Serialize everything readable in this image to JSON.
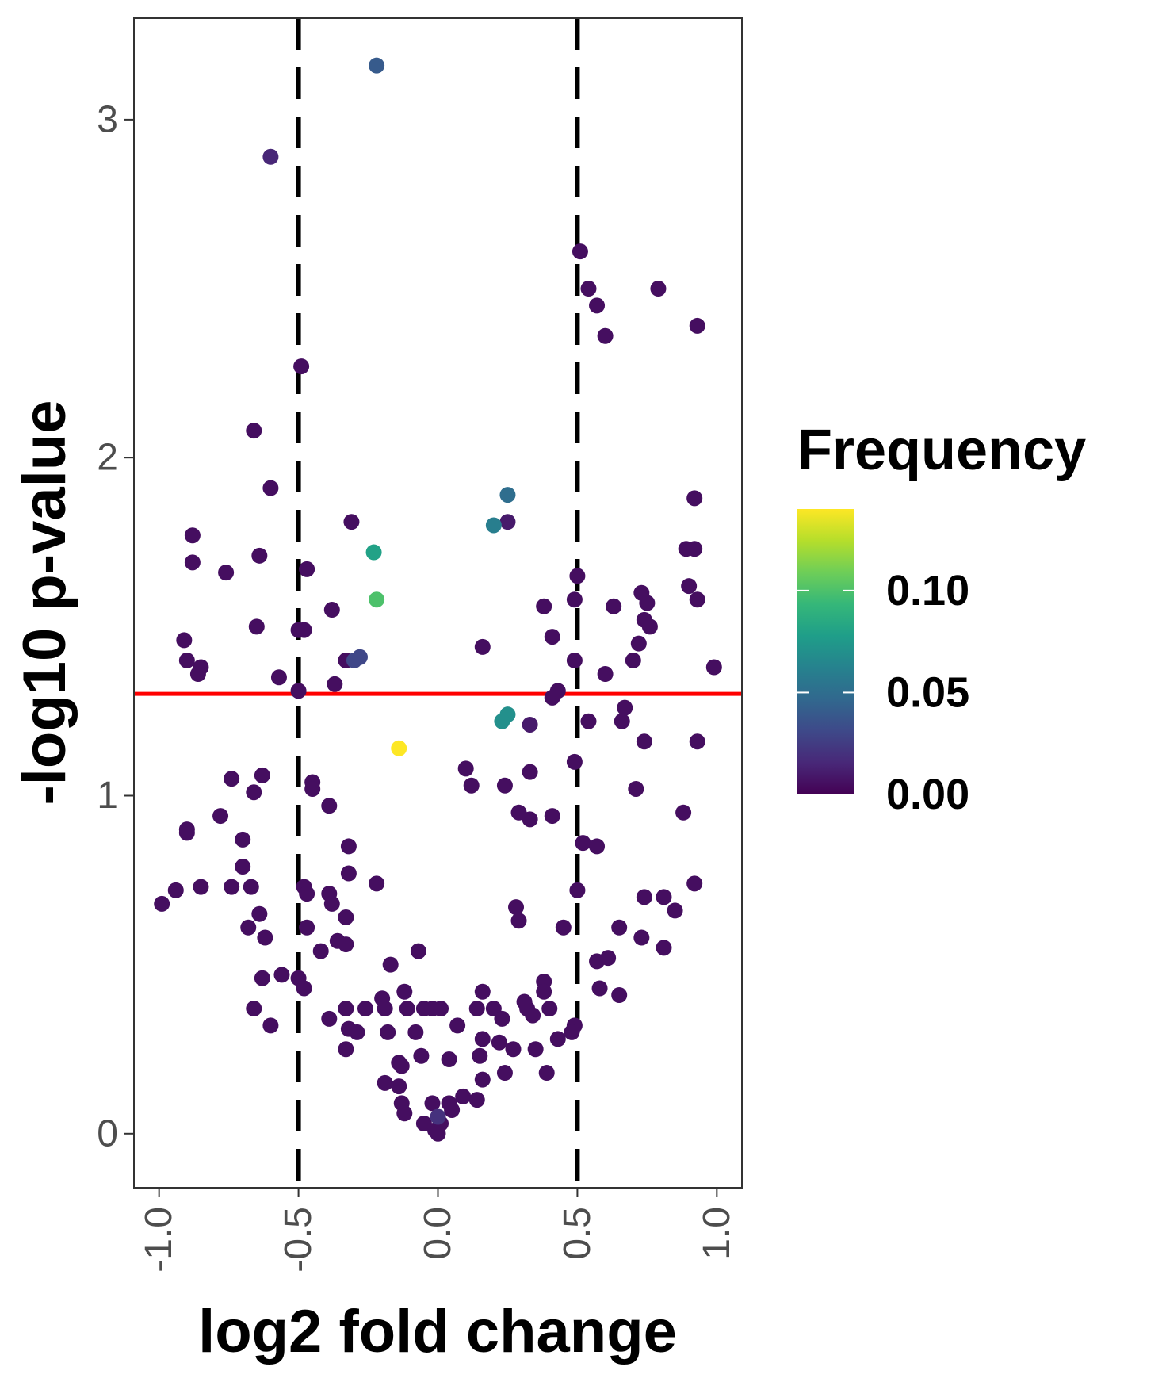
{
  "chart_data": {
    "type": "scatter",
    "xlabel": "log2 fold change",
    "ylabel": "-log10 p-value",
    "xlim": [
      -1.09,
      1.09
    ],
    "ylim": [
      -0.16,
      3.3
    ],
    "x_ticks": [
      {
        "value": -1.0,
        "label": "-1.0"
      },
      {
        "value": -0.5,
        "label": "-0.5"
      },
      {
        "value": 0.0,
        "label": "0.0"
      },
      {
        "value": 0.5,
        "label": "0.5"
      },
      {
        "value": 1.0,
        "label": "1.0"
      }
    ],
    "y_ticks": [
      {
        "value": 0,
        "label": "0"
      },
      {
        "value": 1,
        "label": "1"
      },
      {
        "value": 2,
        "label": "2"
      },
      {
        "value": 3,
        "label": "3"
      }
    ],
    "grid": false,
    "threshold_lines": {
      "vertical": [
        -0.5,
        0.5
      ],
      "vertical_color": "#000000",
      "vertical_style": "dashed",
      "horizontal": 1.301,
      "horizontal_color": "#ff0000"
    },
    "legend": {
      "title": "Frequency",
      "placement": "right",
      "colormap": "viridis",
      "range": [
        0,
        0.14
      ],
      "ticks": [
        {
          "value": 0.0,
          "label": "0.00"
        },
        {
          "value": 0.05,
          "label": "0.05"
        },
        {
          "value": 0.1,
          "label": "0.10"
        }
      ],
      "colors": [
        "#440154",
        "#482878",
        "#3e4989",
        "#31688e",
        "#26828e",
        "#1f9e89",
        "#35b779",
        "#6ece58",
        "#b5de2b",
        "#fde725"
      ]
    },
    "points": [
      {
        "x": -0.22,
        "y": 3.16,
        "f": 0.04
      },
      {
        "x": -0.6,
        "y": 2.89,
        "f": 0.015
      },
      {
        "x": 0.51,
        "y": 2.61,
        "f": 0.005
      },
      {
        "x": 0.54,
        "y": 2.5,
        "f": 0.005
      },
      {
        "x": 0.57,
        "y": 2.45,
        "f": 0.005
      },
      {
        "x": 0.79,
        "y": 2.5,
        "f": 0.005
      },
      {
        "x": 0.6,
        "y": 2.36,
        "f": 0.005
      },
      {
        "x": 0.93,
        "y": 2.39,
        "f": 0.005
      },
      {
        "x": -0.49,
        "y": 2.27,
        "f": 0.005
      },
      {
        "x": -0.66,
        "y": 2.08,
        "f": 0.005
      },
      {
        "x": -0.6,
        "y": 1.91,
        "f": 0.005
      },
      {
        "x": 0.25,
        "y": 1.89,
        "f": 0.05
      },
      {
        "x": 0.92,
        "y": 1.88,
        "f": 0.005
      },
      {
        "x": -0.31,
        "y": 1.81,
        "f": 0.005
      },
      {
        "x": 0.2,
        "y": 1.8,
        "f": 0.06
      },
      {
        "x": 0.25,
        "y": 1.81,
        "f": 0.01
      },
      {
        "x": -0.88,
        "y": 1.77,
        "f": 0.005
      },
      {
        "x": -0.23,
        "y": 1.72,
        "f": 0.08
      },
      {
        "x": 0.89,
        "y": 1.73,
        "f": 0.005
      },
      {
        "x": 0.92,
        "y": 1.73,
        "f": 0.005
      },
      {
        "x": -0.88,
        "y": 1.69,
        "f": 0.005
      },
      {
        "x": -0.64,
        "y": 1.71,
        "f": 0.005
      },
      {
        "x": -0.76,
        "y": 1.66,
        "f": 0.005
      },
      {
        "x": -0.47,
        "y": 1.67,
        "f": 0.005
      },
      {
        "x": 0.5,
        "y": 1.65,
        "f": 0.005
      },
      {
        "x": -0.22,
        "y": 1.58,
        "f": 0.1
      },
      {
        "x": 0.73,
        "y": 1.6,
        "f": 0.005
      },
      {
        "x": 0.9,
        "y": 1.62,
        "f": 0.005
      },
      {
        "x": 0.38,
        "y": 1.56,
        "f": 0.005
      },
      {
        "x": 0.49,
        "y": 1.58,
        "f": 0.005
      },
      {
        "x": 0.63,
        "y": 1.56,
        "f": 0.005
      },
      {
        "x": 0.75,
        "y": 1.57,
        "f": 0.005
      },
      {
        "x": 0.93,
        "y": 1.58,
        "f": 0.005
      },
      {
        "x": -0.38,
        "y": 1.55,
        "f": 0.005
      },
      {
        "x": 0.74,
        "y": 1.52,
        "f": 0.005
      },
      {
        "x": 0.76,
        "y": 1.5,
        "f": 0.005
      },
      {
        "x": -0.65,
        "y": 1.5,
        "f": 0.005
      },
      {
        "x": -0.5,
        "y": 1.49,
        "f": 0.005
      },
      {
        "x": -0.48,
        "y": 1.49,
        "f": 0.005
      },
      {
        "x": 0.41,
        "y": 1.47,
        "f": 0.005
      },
      {
        "x": -0.91,
        "y": 1.46,
        "f": 0.005
      },
      {
        "x": 0.72,
        "y": 1.45,
        "f": 0.005
      },
      {
        "x": 0.16,
        "y": 1.44,
        "f": 0.005
      },
      {
        "x": -0.9,
        "y": 1.4,
        "f": 0.005
      },
      {
        "x": -0.33,
        "y": 1.4,
        "f": 0.005
      },
      {
        "x": -0.3,
        "y": 1.4,
        "f": 0.03
      },
      {
        "x": -0.28,
        "y": 1.41,
        "f": 0.03
      },
      {
        "x": 0.49,
        "y": 1.4,
        "f": 0.005
      },
      {
        "x": 0.7,
        "y": 1.4,
        "f": 0.005
      },
      {
        "x": 0.99,
        "y": 1.38,
        "f": 0.005
      },
      {
        "x": -0.85,
        "y": 1.38,
        "f": 0.005
      },
      {
        "x": -0.86,
        "y": 1.36,
        "f": 0.005
      },
      {
        "x": -0.57,
        "y": 1.35,
        "f": 0.005
      },
      {
        "x": 0.6,
        "y": 1.36,
        "f": 0.005
      },
      {
        "x": -0.37,
        "y": 1.33,
        "f": 0.005
      },
      {
        "x": -0.5,
        "y": 1.31,
        "f": 0.005
      },
      {
        "x": 0.43,
        "y": 1.31,
        "f": 0.005
      },
      {
        "x": 0.41,
        "y": 1.29,
        "f": 0.005
      },
      {
        "x": 0.67,
        "y": 1.26,
        "f": 0.005
      },
      {
        "x": 0.25,
        "y": 1.24,
        "f": 0.07
      },
      {
        "x": 0.23,
        "y": 1.22,
        "f": 0.07
      },
      {
        "x": 0.54,
        "y": 1.22,
        "f": 0.005
      },
      {
        "x": 0.66,
        "y": 1.22,
        "f": 0.005
      },
      {
        "x": 0.33,
        "y": 1.21,
        "f": 0.01
      },
      {
        "x": 0.74,
        "y": 1.16,
        "f": 0.005
      },
      {
        "x": 0.93,
        "y": 1.16,
        "f": 0.005
      },
      {
        "x": -0.14,
        "y": 1.14,
        "f": 0.14
      },
      {
        "x": 0.49,
        "y": 1.1,
        "f": 0.005
      },
      {
        "x": 0.1,
        "y": 1.08,
        "f": 0.005
      },
      {
        "x": 0.33,
        "y": 1.07,
        "f": 0.005
      },
      {
        "x": -0.74,
        "y": 1.05,
        "f": 0.005
      },
      {
        "x": -0.63,
        "y": 1.06,
        "f": 0.005
      },
      {
        "x": -0.45,
        "y": 1.04,
        "f": 0.005
      },
      {
        "x": -0.45,
        "y": 1.02,
        "f": 0.005
      },
      {
        "x": 0.12,
        "y": 1.03,
        "f": 0.005
      },
      {
        "x": 0.24,
        "y": 1.03,
        "f": 0.005
      },
      {
        "x": -0.66,
        "y": 1.01,
        "f": 0.005
      },
      {
        "x": 0.71,
        "y": 1.02,
        "f": 0.005
      },
      {
        "x": -0.39,
        "y": 0.97,
        "f": 0.005
      },
      {
        "x": 0.29,
        "y": 0.95,
        "f": 0.005
      },
      {
        "x": 0.88,
        "y": 0.95,
        "f": 0.005
      },
      {
        "x": -0.78,
        "y": 0.94,
        "f": 0.005
      },
      {
        "x": 0.33,
        "y": 0.93,
        "f": 0.005
      },
      {
        "x": 0.41,
        "y": 0.94,
        "f": 0.005
      },
      {
        "x": -0.9,
        "y": 0.9,
        "f": 0.005
      },
      {
        "x": -0.9,
        "y": 0.89,
        "f": 0.005
      },
      {
        "x": -0.7,
        "y": 0.87,
        "f": 0.005
      },
      {
        "x": 0.52,
        "y": 0.86,
        "f": 0.005
      },
      {
        "x": 0.57,
        "y": 0.85,
        "f": 0.005
      },
      {
        "x": -0.32,
        "y": 0.85,
        "f": 0.005
      },
      {
        "x": -0.7,
        "y": 0.79,
        "f": 0.005
      },
      {
        "x": -0.32,
        "y": 0.77,
        "f": 0.005
      },
      {
        "x": -0.85,
        "y": 0.73,
        "f": 0.005
      },
      {
        "x": -0.74,
        "y": 0.73,
        "f": 0.005
      },
      {
        "x": -0.67,
        "y": 0.73,
        "f": 0.005
      },
      {
        "x": -0.48,
        "y": 0.73,
        "f": 0.005
      },
      {
        "x": -0.22,
        "y": 0.74,
        "f": 0.005
      },
      {
        "x": 0.92,
        "y": 0.74,
        "f": 0.005
      },
      {
        "x": -0.94,
        "y": 0.72,
        "f": 0.005
      },
      {
        "x": -0.47,
        "y": 0.71,
        "f": 0.005
      },
      {
        "x": -0.39,
        "y": 0.71,
        "f": 0.005
      },
      {
        "x": 0.5,
        "y": 0.72,
        "f": 0.005
      },
      {
        "x": 0.74,
        "y": 0.7,
        "f": 0.005
      },
      {
        "x": 0.81,
        "y": 0.7,
        "f": 0.005
      },
      {
        "x": -0.99,
        "y": 0.68,
        "f": 0.005
      },
      {
        "x": -0.38,
        "y": 0.68,
        "f": 0.005
      },
      {
        "x": 0.28,
        "y": 0.67,
        "f": 0.005
      },
      {
        "x": 0.85,
        "y": 0.66,
        "f": 0.005
      },
      {
        "x": -0.64,
        "y": 0.65,
        "f": 0.005
      },
      {
        "x": -0.33,
        "y": 0.64,
        "f": 0.005
      },
      {
        "x": 0.29,
        "y": 0.63,
        "f": 0.005
      },
      {
        "x": -0.68,
        "y": 0.61,
        "f": 0.005
      },
      {
        "x": -0.47,
        "y": 0.61,
        "f": 0.005
      },
      {
        "x": 0.45,
        "y": 0.61,
        "f": 0.005
      },
      {
        "x": 0.65,
        "y": 0.61,
        "f": 0.005
      },
      {
        "x": -0.62,
        "y": 0.58,
        "f": 0.005
      },
      {
        "x": 0.73,
        "y": 0.58,
        "f": 0.005
      },
      {
        "x": -0.36,
        "y": 0.57,
        "f": 0.005
      },
      {
        "x": -0.33,
        "y": 0.56,
        "f": 0.005
      },
      {
        "x": 0.81,
        "y": 0.55,
        "f": 0.005
      },
      {
        "x": -0.42,
        "y": 0.54,
        "f": 0.005
      },
      {
        "x": -0.07,
        "y": 0.54,
        "f": 0.005
      },
      {
        "x": 0.57,
        "y": 0.51,
        "f": 0.005
      },
      {
        "x": 0.61,
        "y": 0.52,
        "f": 0.005
      },
      {
        "x": -0.17,
        "y": 0.5,
        "f": 0.005
      },
      {
        "x": -0.56,
        "y": 0.47,
        "f": 0.005
      },
      {
        "x": -0.63,
        "y": 0.46,
        "f": 0.005
      },
      {
        "x": -0.5,
        "y": 0.46,
        "f": 0.005
      },
      {
        "x": 0.38,
        "y": 0.45,
        "f": 0.005
      },
      {
        "x": -0.48,
        "y": 0.43,
        "f": 0.005
      },
      {
        "x": 0.58,
        "y": 0.43,
        "f": 0.005
      },
      {
        "x": -0.12,
        "y": 0.42,
        "f": 0.005
      },
      {
        "x": 0.16,
        "y": 0.42,
        "f": 0.005
      },
      {
        "x": 0.38,
        "y": 0.42,
        "f": 0.005
      },
      {
        "x": 0.65,
        "y": 0.41,
        "f": 0.005
      },
      {
        "x": -0.2,
        "y": 0.4,
        "f": 0.005
      },
      {
        "x": 0.31,
        "y": 0.39,
        "f": 0.005
      },
      {
        "x": -0.66,
        "y": 0.37,
        "f": 0.005
      },
      {
        "x": -0.33,
        "y": 0.37,
        "f": 0.005
      },
      {
        "x": -0.26,
        "y": 0.37,
        "f": 0.005
      },
      {
        "x": -0.19,
        "y": 0.37,
        "f": 0.005
      },
      {
        "x": -0.11,
        "y": 0.37,
        "f": 0.005
      },
      {
        "x": -0.05,
        "y": 0.37,
        "f": 0.005
      },
      {
        "x": -0.02,
        "y": 0.37,
        "f": 0.005
      },
      {
        "x": 0.01,
        "y": 0.37,
        "f": 0.005
      },
      {
        "x": 0.14,
        "y": 0.37,
        "f": 0.005
      },
      {
        "x": 0.2,
        "y": 0.37,
        "f": 0.005
      },
      {
        "x": 0.32,
        "y": 0.37,
        "f": 0.005
      },
      {
        "x": 0.4,
        "y": 0.37,
        "f": 0.005
      },
      {
        "x": 0.34,
        "y": 0.35,
        "f": 0.005
      },
      {
        "x": -0.39,
        "y": 0.34,
        "f": 0.005
      },
      {
        "x": 0.23,
        "y": 0.34,
        "f": 0.005
      },
      {
        "x": -0.6,
        "y": 0.32,
        "f": 0.005
      },
      {
        "x": 0.49,
        "y": 0.32,
        "f": 0.005
      },
      {
        "x": 0.07,
        "y": 0.32,
        "f": 0.005
      },
      {
        "x": 0.48,
        "y": 0.3,
        "f": 0.005
      },
      {
        "x": -0.32,
        "y": 0.31,
        "f": 0.005
      },
      {
        "x": -0.29,
        "y": 0.3,
        "f": 0.005
      },
      {
        "x": -0.18,
        "y": 0.3,
        "f": 0.005
      },
      {
        "x": -0.08,
        "y": 0.3,
        "f": 0.005
      },
      {
        "x": 0.43,
        "y": 0.28,
        "f": 0.005
      },
      {
        "x": 0.16,
        "y": 0.28,
        "f": 0.005
      },
      {
        "x": 0.22,
        "y": 0.27,
        "f": 0.005
      },
      {
        "x": 0.27,
        "y": 0.25,
        "f": 0.005
      },
      {
        "x": 0.35,
        "y": 0.25,
        "f": 0.005
      },
      {
        "x": -0.33,
        "y": 0.25,
        "f": 0.005
      },
      {
        "x": -0.06,
        "y": 0.23,
        "f": 0.005
      },
      {
        "x": 0.15,
        "y": 0.23,
        "f": 0.005
      },
      {
        "x": 0.04,
        "y": 0.22,
        "f": 0.005
      },
      {
        "x": -0.14,
        "y": 0.21,
        "f": 0.005
      },
      {
        "x": -0.13,
        "y": 0.2,
        "f": 0.005
      },
      {
        "x": 0.39,
        "y": 0.18,
        "f": 0.005
      },
      {
        "x": 0.24,
        "y": 0.18,
        "f": 0.005
      },
      {
        "x": -0.19,
        "y": 0.15,
        "f": 0.005
      },
      {
        "x": 0.16,
        "y": 0.16,
        "f": 0.005
      },
      {
        "x": -0.14,
        "y": 0.14,
        "f": 0.005
      },
      {
        "x": 0.09,
        "y": 0.11,
        "f": 0.005
      },
      {
        "x": 0.14,
        "y": 0.1,
        "f": 0.005
      },
      {
        "x": -0.13,
        "y": 0.09,
        "f": 0.005
      },
      {
        "x": -0.02,
        "y": 0.09,
        "f": 0.005
      },
      {
        "x": 0.04,
        "y": 0.09,
        "f": 0.005
      },
      {
        "x": -0.12,
        "y": 0.06,
        "f": 0.005
      },
      {
        "x": 0.05,
        "y": 0.07,
        "f": 0.005
      },
      {
        "x": 0.0,
        "y": 0.05,
        "f": 0.02
      },
      {
        "x": -0.05,
        "y": 0.03,
        "f": 0.005
      },
      {
        "x": 0.01,
        "y": 0.03,
        "f": 0.005
      },
      {
        "x": -0.01,
        "y": 0.01,
        "f": 0.005
      },
      {
        "x": 0.0,
        "y": 0.0,
        "f": 0.005
      }
    ]
  }
}
